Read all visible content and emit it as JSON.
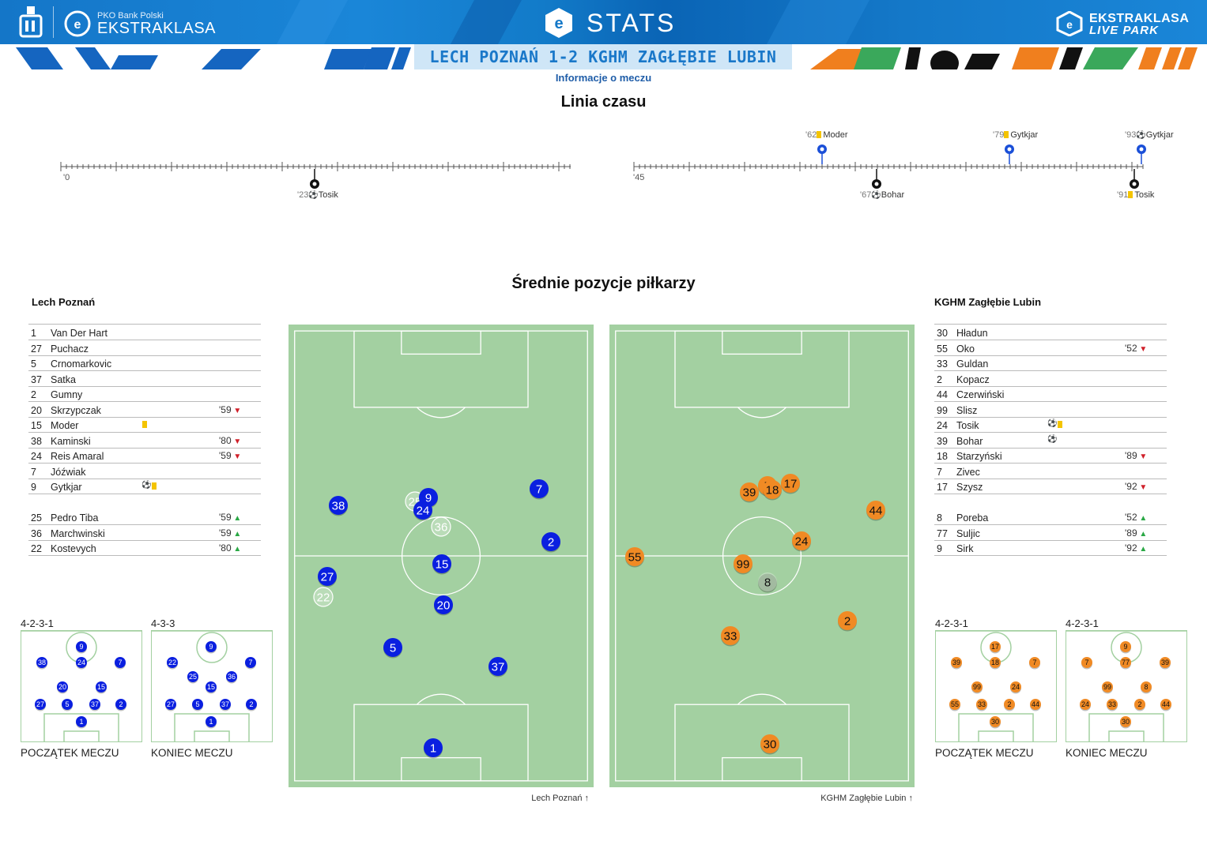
{
  "header": {
    "brand_small": "PKO Bank Polski",
    "brand_main": "EKSTRAKLASA",
    "stats_title": "STATS",
    "livepark_line1": "EKSTRAKLASA",
    "livepark_line2": "LIVE PARK",
    "match_title": "LECH POZNAŃ 1-2 KGHM ZAGŁĘBIE LUBIN",
    "subtitle": "Informacje o meczu",
    "colors": {
      "brand_blue": "#1478c8",
      "home_team": "#0a1fe0",
      "away_team": "#f08a24",
      "pitch": "#a3d0a1"
    }
  },
  "timeline": {
    "title": "Linia czasu",
    "first_half_start": "'0",
    "second_half_start": "'45",
    "events_home": [
      {
        "minute": "'23",
        "icon": "goal-ball-icon",
        "player": "Tosik"
      },
      {
        "minute": "'67",
        "icon": "goal-ball-icon",
        "player": "Bohar"
      },
      {
        "minute": "'91",
        "icon": "yellow-card-icon",
        "player": "Tosik"
      }
    ],
    "events_away": [
      {
        "minute": "'62",
        "icon": "yellow-card-icon",
        "player": "Moder"
      },
      {
        "minute": "'79",
        "icon": "yellow-card-icon",
        "player": "Gytkjar"
      },
      {
        "minute": "'93",
        "icon": "goal-ball-icon",
        "player": "Gytkjar"
      }
    ]
  },
  "positions": {
    "title": "Średnie pozycje piłkarzy",
    "home_pitch_label": "Lech Poznań",
    "away_pitch_label": "KGHM Zagłębie Lubin"
  },
  "home": {
    "name": "Lech Poznań",
    "starters": [
      {
        "num": "1",
        "name": "Van Der Hart",
        "sub": ""
      },
      {
        "num": "27",
        "name": "Puchacz",
        "sub": ""
      },
      {
        "num": "5",
        "name": "Crnomarkovic",
        "sub": ""
      },
      {
        "num": "37",
        "name": "Satka",
        "sub": ""
      },
      {
        "num": "2",
        "name": "Gumny",
        "sub": ""
      },
      {
        "num": "20",
        "name": "Skrzypczak",
        "sub": "'59"
      },
      {
        "num": "15",
        "name": "Moder",
        "sub": ""
      },
      {
        "num": "38",
        "name": "Kaminski",
        "sub": "'80"
      },
      {
        "num": "24",
        "name": "Reis Amaral",
        "sub": "'59"
      },
      {
        "num": "7",
        "name": "Jóźwiak",
        "sub": ""
      },
      {
        "num": "9",
        "name": "Gytkjar",
        "sub": ""
      }
    ],
    "subs": [
      {
        "num": "25",
        "name": "Pedro Tiba",
        "sub": "'59"
      },
      {
        "num": "36",
        "name": "Marchwinski",
        "sub": "'59"
      },
      {
        "num": "22",
        "name": "Kostevych",
        "sub": "'80"
      }
    ],
    "formation_start": "4-2-3-1",
    "formation_end": "4-3-3",
    "caption_start": "POCZĄTEK MECZU",
    "caption_end": "KONIEC MECZU"
  },
  "away": {
    "name": "KGHM Zagłębie Lubin",
    "starters": [
      {
        "num": "30",
        "name": "Hładun",
        "sub": ""
      },
      {
        "num": "55",
        "name": "Oko",
        "sub": "'52"
      },
      {
        "num": "33",
        "name": "Guldan",
        "sub": ""
      },
      {
        "num": "2",
        "name": "Kopacz",
        "sub": ""
      },
      {
        "num": "44",
        "name": "Czerwiński",
        "sub": ""
      },
      {
        "num": "99",
        "name": "Slisz",
        "sub": ""
      },
      {
        "num": "24",
        "name": "Tosik",
        "sub": ""
      },
      {
        "num": "39",
        "name": "Bohar",
        "sub": ""
      },
      {
        "num": "18",
        "name": "Starzyński",
        "sub": "'89"
      },
      {
        "num": "7",
        "name": "Zivec",
        "sub": ""
      },
      {
        "num": "17",
        "name": "Szysz",
        "sub": "'92"
      }
    ],
    "subs": [
      {
        "num": "8",
        "name": "Poreba",
        "sub": "'52"
      },
      {
        "num": "77",
        "name": "Suljic",
        "sub": "'89"
      },
      {
        "num": "9",
        "name": "Sirk",
        "sub": "'92"
      }
    ],
    "formation_start": "4-2-3-1",
    "formation_end": "4-2-3-1",
    "caption_start": "POCZĄTEK MECZU",
    "caption_end": "KONIEC MECZU"
  }
}
